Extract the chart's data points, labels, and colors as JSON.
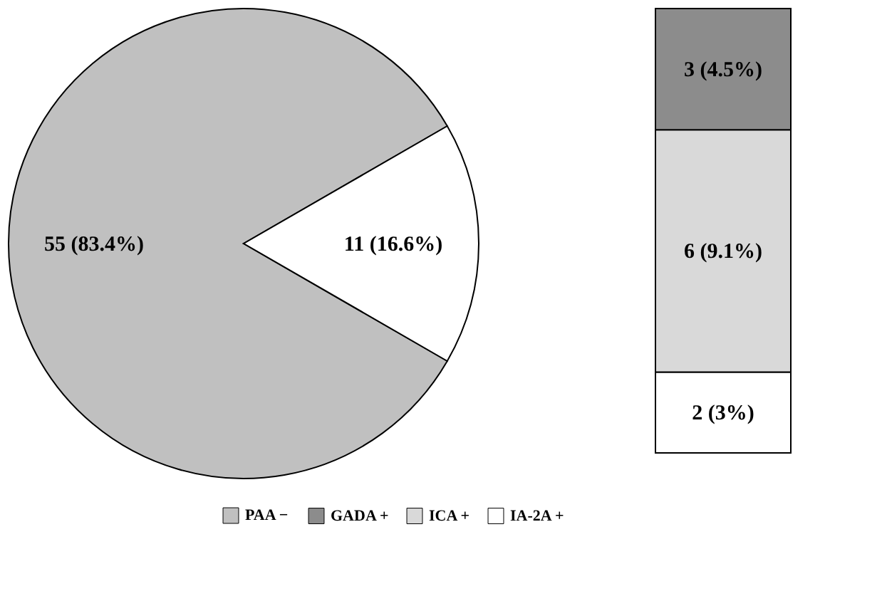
{
  "chart_data": [
    {
      "type": "pie",
      "categories": [
        "PAA −",
        null
      ],
      "values": [
        55,
        11
      ],
      "colors": [
        "#c0c0c0",
        "#ffffff"
      ],
      "value_labels": [
        "55 (83.4%)",
        "11 (16.6%)"
      ],
      "legend": "bottom"
    },
    {
      "type": "bar",
      "stacked": true,
      "categories": [
        null
      ],
      "legend": "bottom",
      "series": [
        {
          "name": "IA-2A +",
          "color": "#ffffff",
          "values": [
            2
          ],
          "value_labels": [
            "2 (3%)"
          ]
        },
        {
          "name": "ICA +",
          "color": "#d9d9d9",
          "values": [
            6
          ],
          "value_labels": [
            "6 (9.1%)"
          ]
        },
        {
          "name": "GADA +",
          "color": "#8c8c8c",
          "values": [
            3
          ],
          "value_labels": [
            "3 (4.5%)"
          ]
        }
      ]
    }
  ]
}
